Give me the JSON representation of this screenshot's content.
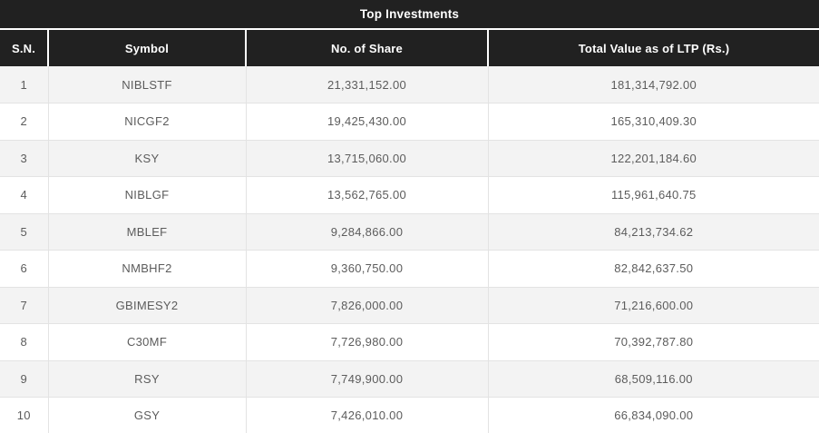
{
  "widget": {
    "title": "Top Investments",
    "columns": [
      "S.N.",
      "Symbol",
      "No. of Share",
      "Total Value as of LTP (Rs.)"
    ],
    "rows": [
      {
        "sn": "1",
        "symbol": "NIBLSTF",
        "shares": "21,331,152.00",
        "value": "181,314,792.00"
      },
      {
        "sn": "2",
        "symbol": "NICGF2",
        "shares": "19,425,430.00",
        "value": "165,310,409.30"
      },
      {
        "sn": "3",
        "symbol": "KSY",
        "shares": "13,715,060.00",
        "value": "122,201,184.60"
      },
      {
        "sn": "4",
        "symbol": "NIBLGF",
        "shares": "13,562,765.00",
        "value": "115,961,640.75"
      },
      {
        "sn": "5",
        "symbol": "MBLEF",
        "shares": "9,284,866.00",
        "value": "84,213,734.62"
      },
      {
        "sn": "6",
        "symbol": "NMBHF2",
        "shares": "9,360,750.00",
        "value": "82,842,637.50"
      },
      {
        "sn": "7",
        "symbol": "GBIMESY2",
        "shares": "7,826,000.00",
        "value": "71,216,600.00"
      },
      {
        "sn": "8",
        "symbol": "C30MF",
        "shares": "7,726,980.00",
        "value": "70,392,787.80"
      },
      {
        "sn": "9",
        "symbol": "RSY",
        "shares": "7,749,900.00",
        "value": "68,509,116.00"
      },
      {
        "sn": "10",
        "symbol": "GSY",
        "shares": "7,426,010.00",
        "value": "66,834,090.00"
      }
    ]
  },
  "colors": {
    "header_bg": "#212121",
    "header_text": "#ffffff",
    "stripe_bg": "#f3f3f3",
    "row_bg": "#ffffff",
    "body_text": "#5c5c5c",
    "grid_line": "#e3e3e3",
    "header_divider": "#ffffff"
  }
}
